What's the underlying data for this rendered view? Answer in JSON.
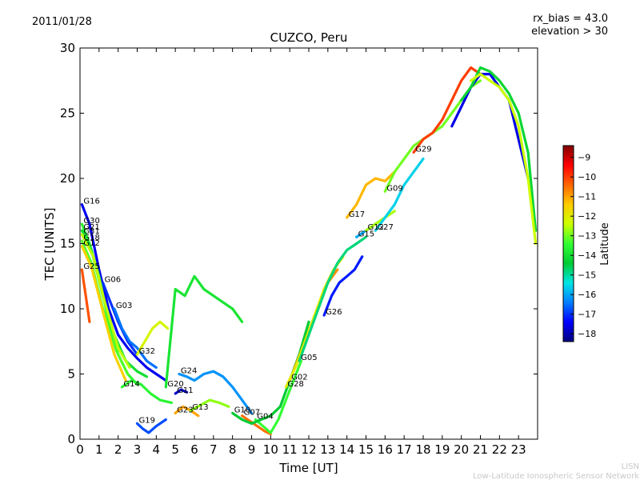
{
  "header": {
    "date": "2011/01/28",
    "rx_bias": "rx_bias = 43.0",
    "elevation": "elevation > 30"
  },
  "footer": {
    "line1": "LISN",
    "line2": "Low-Latitude Ionospheric Sensor Network"
  },
  "colorbar": {
    "label": "Latitude",
    "ticks": [
      -9,
      -10,
      -11,
      -12,
      -13,
      -14,
      -15,
      -16,
      -17,
      -18
    ],
    "range": [
      -18.4,
      -8.4
    ],
    "stops": [
      "#00007f",
      "#0000ff",
      "#007fff",
      "#00e5e5",
      "#00cc33",
      "#33ff33",
      "#ccff00",
      "#ffcc00",
      "#ff6600",
      "#ff0000",
      "#7f0000"
    ]
  },
  "chart_data": {
    "type": "line",
    "title": "CUZCO, Peru",
    "xlabel": "Time [UT]",
    "ylabel": "TEC [UNITS]",
    "xlim": [
      0,
      24
    ],
    "ylim": [
      0,
      30
    ],
    "xticks": [
      0,
      1,
      2,
      3,
      4,
      5,
      6,
      7,
      8,
      9,
      10,
      11,
      12,
      13,
      14,
      15,
      16,
      17,
      18,
      19,
      20,
      21,
      22,
      23
    ],
    "yticks": [
      0,
      5,
      10,
      15,
      20,
      25,
      30
    ],
    "grid": false,
    "series": [
      {
        "name": "G16",
        "lat": -17.5,
        "x": [
          0.1,
          0.5,
          1.0,
          1.5,
          2.0,
          2.5,
          3.0,
          3.5,
          4.0,
          4.5
        ],
        "y": [
          18.0,
          16.5,
          13.0,
          10.0,
          8.0,
          7.0,
          6.2,
          5.5,
          5.0,
          4.5
        ]
      },
      {
        "name": "G30",
        "lat": -13.5,
        "x": [
          0.1,
          0.5,
          1.0,
          1.5,
          2.0,
          2.5,
          3.0
        ],
        "y": [
          16.5,
          15.0,
          12.5,
          9.0,
          6.5,
          5.0,
          4.2
        ]
      },
      {
        "name": "G21",
        "lat": -14.0,
        "x": [
          0.1,
          0.6,
          1.2,
          1.8,
          2.4,
          3.0,
          3.5
        ],
        "y": [
          16.0,
          14.5,
          11.0,
          8.0,
          6.0,
          5.2,
          4.8
        ]
      },
      {
        "name": "G31",
        "lat": -12.5,
        "x": [
          0.1,
          0.7,
          1.3,
          2.0,
          2.6
        ],
        "y": [
          15.7,
          14.0,
          10.5,
          7.0,
          5.5
        ]
      },
      {
        "name": "G18",
        "lat": -13.2,
        "x": [
          0.1,
          0.6,
          1.2,
          1.9,
          2.5
        ],
        "y": [
          15.2,
          13.5,
          10.0,
          6.8,
          5.0
        ]
      },
      {
        "name": "G12",
        "lat": -11.5,
        "x": [
          0.1,
          0.6,
          1.2,
          1.8,
          2.4
        ],
        "y": [
          14.8,
          13.2,
          9.8,
          6.5,
          4.5
        ]
      },
      {
        "name": "G25",
        "lat": -10.2,
        "x": [
          0.1,
          0.3,
          0.5
        ],
        "y": [
          13.0,
          11.0,
          9.0
        ]
      },
      {
        "name": "G06",
        "lat": -17.0,
        "x": [
          1.2,
          1.6,
          2.0,
          2.5,
          3.0
        ],
        "y": [
          12.0,
          10.5,
          9.0,
          7.5,
          6.5
        ]
      },
      {
        "name": "G03",
        "lat": -16.5,
        "x": [
          1.8,
          2.2,
          2.6,
          3.0,
          3.5,
          4.0
        ],
        "y": [
          10.0,
          8.5,
          7.5,
          7.0,
          6.0,
          5.5
        ]
      },
      {
        "name": "G32",
        "lat": -12.2,
        "x": [
          3.0,
          3.4,
          3.8,
          4.2,
          4.6
        ],
        "y": [
          6.5,
          7.5,
          8.5,
          9.0,
          8.5
        ]
      },
      {
        "name": "G14",
        "lat": -13.6,
        "x": [
          2.2,
          2.7,
          3.2,
          3.7,
          4.2,
          4.8
        ],
        "y": [
          4.0,
          4.5,
          4.2,
          3.5,
          3.0,
          2.8
        ]
      },
      {
        "name": "G19",
        "lat": -16.8,
        "x": [
          3.0,
          3.3,
          3.6,
          4.0,
          4.5
        ],
        "y": [
          1.2,
          0.8,
          0.5,
          1.0,
          1.5
        ]
      },
      {
        "name": "G20",
        "lat": -13.9,
        "x": [
          4.5,
          5.0,
          5.5,
          6.0,
          6.5,
          7.0,
          7.5,
          8.0,
          8.5
        ],
        "y": [
          4.0,
          11.5,
          11.0,
          12.5,
          11.5,
          11.0,
          10.5,
          10.0,
          9.0
        ]
      },
      {
        "name": "G24",
        "lat": -16.2,
        "x": [
          5.2,
          5.6,
          6.0,
          6.5,
          7.0,
          7.5,
          8.0,
          8.5,
          9.0
        ],
        "y": [
          5.0,
          4.8,
          4.5,
          5.0,
          5.2,
          4.8,
          4.0,
          3.0,
          2.0
        ]
      },
      {
        "name": "G11",
        "lat": -17.8,
        "x": [
          5.0,
          5.3,
          5.6
        ],
        "y": [
          3.5,
          3.8,
          3.6
        ]
      },
      {
        "name": "G23",
        "lat": -11.0,
        "x": [
          5.0,
          5.4,
          5.8,
          6.2
        ],
        "y": [
          2.0,
          2.5,
          2.2,
          1.8
        ]
      },
      {
        "name": "G13",
        "lat": -12.8,
        "x": [
          5.8,
          6.3,
          6.8,
          7.3,
          7.8
        ],
        "y": [
          2.2,
          2.6,
          3.0,
          2.8,
          2.5
        ]
      },
      {
        "name": "G07",
        "lat": -10.5,
        "x": [
          8.5,
          8.9,
          9.3,
          9.7,
          10.0
        ],
        "y": [
          1.8,
          1.4,
          1.0,
          0.6,
          0.4
        ]
      },
      {
        "name": "G04",
        "lat": -13.4,
        "x": [
          9.2,
          9.6,
          10.0,
          10.4,
          10.8,
          11.2,
          11.6
        ],
        "y": [
          1.5,
          1.0,
          0.5,
          1.5,
          3.0,
          4.5,
          6.0
        ]
      },
      {
        "name": "G10",
        "lat": -14.4,
        "x": [
          8.0,
          8.5,
          9.0,
          9.5,
          10.0,
          10.5,
          11.0,
          11.5,
          12.0
        ],
        "y": [
          2.0,
          1.5,
          1.2,
          1.5,
          1.8,
          2.5,
          4.5,
          6.5,
          9.0
        ]
      },
      {
        "name": "G02",
        "lat": -10.8,
        "x": [
          11.0,
          11.4,
          11.8,
          12.2,
          12.6,
          13.0,
          13.5
        ],
        "y": [
          4.5,
          6.0,
          7.5,
          9.0,
          10.5,
          12.0,
          13.0
        ]
      },
      {
        "name": "G28",
        "lat": -12.0,
        "x": [
          10.8,
          11.3,
          11.8,
          12.3,
          12.8,
          13.3,
          13.8
        ],
        "y": [
          4.0,
          5.5,
          7.5,
          9.5,
          11.5,
          13.0,
          14.0
        ]
      },
      {
        "name": "G05",
        "lat": -14.8,
        "x": [
          11.5,
          12.0,
          12.5,
          13.0,
          13.5,
          14.0,
          14.5,
          15.0
        ],
        "y": [
          6.0,
          8.0,
          10.0,
          12.0,
          13.5,
          14.5,
          15.0,
          15.5
        ]
      },
      {
        "name": "G26",
        "lat": -17.2,
        "x": [
          12.8,
          13.2,
          13.6,
          14.0,
          14.4,
          14.8
        ],
        "y": [
          9.5,
          11.0,
          12.0,
          12.5,
          13.0,
          14.0
        ]
      },
      {
        "name": "G17",
        "lat": -11.2,
        "x": [
          14.0,
          14.5,
          15.0,
          15.5,
          16.0,
          16.5
        ],
        "y": [
          17.0,
          18.0,
          19.5,
          20.0,
          19.8,
          20.5
        ]
      },
      {
        "name": "G15",
        "lat": -16.0,
        "x": [
          14.5,
          15.0,
          15.5,
          16.0
        ],
        "y": [
          15.5,
          16.0,
          16.5,
          17.0
        ]
      },
      {
        "name": "G12",
        "lat": -12.6,
        "x": [
          15.0,
          15.5,
          16.0,
          16.5
        ],
        "y": [
          16.0,
          16.5,
          17.0,
          17.5
        ]
      },
      {
        "name": "G27",
        "lat": -15.6,
        "x": [
          15.5,
          16.0,
          16.5,
          17.0,
          17.5,
          18.0
        ],
        "y": [
          16.0,
          17.0,
          18.0,
          19.5,
          20.5,
          21.5
        ]
      },
      {
        "name": "G09",
        "lat": -13.0,
        "x": [
          16.0,
          16.5,
          17.0,
          17.5,
          18.0,
          18.5,
          19.0,
          19.5,
          20.0,
          20.5,
          21.0
        ],
        "y": [
          19.0,
          20.5,
          21.5,
          22.5,
          23.0,
          23.5,
          24.0,
          25.0,
          26.0,
          27.0,
          27.5
        ]
      },
      {
        "name": "G29",
        "lat": -10.0,
        "x": [
          17.5,
          18.0,
          18.5,
          19.0,
          19.5,
          20.0,
          20.5,
          21.0
        ],
        "y": [
          22.0,
          23.0,
          23.5,
          24.5,
          26.0,
          27.5,
          28.5,
          28.0
        ]
      },
      {
        "name": "",
        "lat": -17.6,
        "x": [
          19.5,
          20.0,
          20.5,
          21.0,
          21.5,
          22.0,
          22.5,
          23.0,
          23.5
        ],
        "y": [
          24.0,
          25.5,
          27.0,
          28.0,
          28.0,
          27.0,
          26.0,
          23.0,
          20.0
        ]
      },
      {
        "name": "",
        "lat": -14.2,
        "x": [
          20.0,
          20.5,
          21.0,
          21.5,
          22.0,
          22.5,
          23.0,
          23.5,
          23.9
        ],
        "y": [
          26.0,
          27.0,
          28.5,
          28.2,
          27.5,
          26.5,
          25.0,
          22.0,
          16.0
        ]
      },
      {
        "name": "",
        "lat": -12.4,
        "x": [
          20.5,
          21.0,
          21.5,
          22.0,
          22.5,
          23.0,
          23.5,
          23.9
        ],
        "y": [
          27.5,
          28.0,
          27.5,
          27.0,
          26.0,
          24.0,
          20.0,
          15.0
        ]
      }
    ]
  }
}
